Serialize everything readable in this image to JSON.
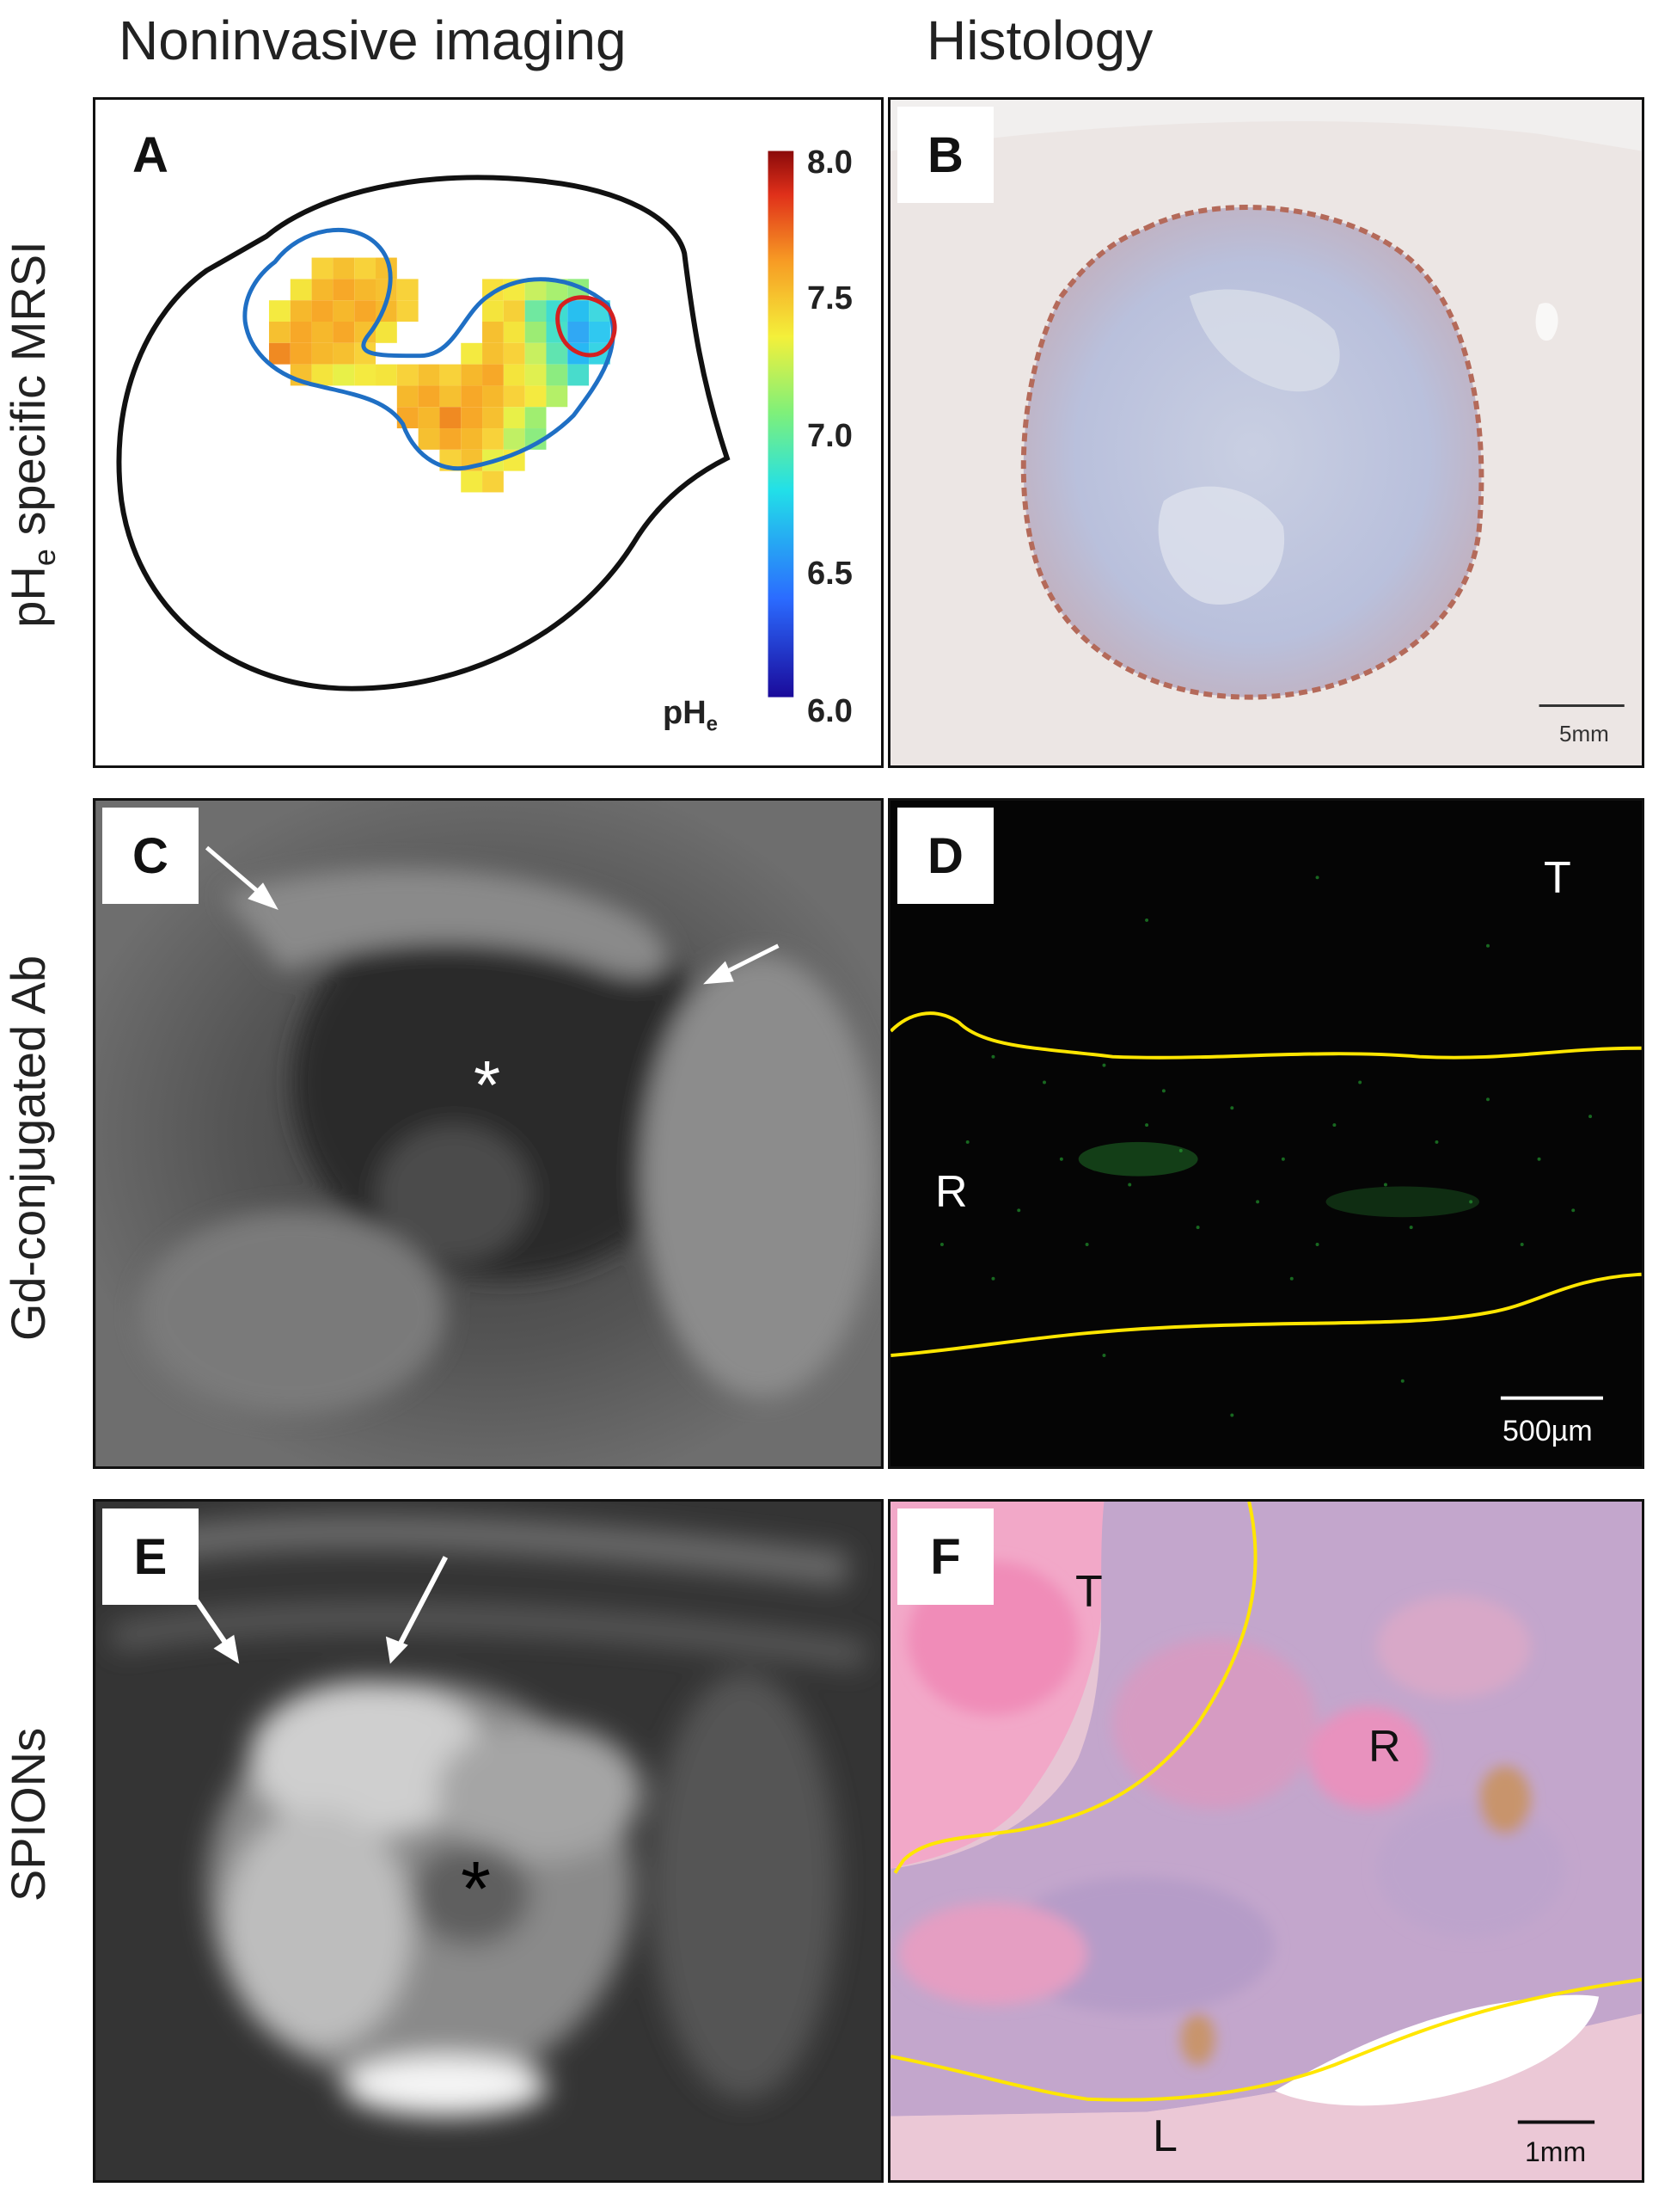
{
  "columns": {
    "left": "Noninvasive imaging",
    "right": "Histology"
  },
  "rows": {
    "ph_main": "pH",
    "ph_sub": "e",
    "ph_rest": " specific MRSI",
    "gd": "Gd-conjugated Ab",
    "spions": "SPIONs"
  },
  "panels": {
    "a": {
      "label": "A",
      "colorbar_ticks": [
        "8.0",
        "7.5",
        "7.0",
        "6.5",
        "6.0"
      ],
      "colorbar_main": "pH",
      "colorbar_sub": "e"
    },
    "b": {
      "label": "B",
      "scale": "5mm"
    },
    "c": {
      "label": "C",
      "asterisk": "*"
    },
    "d": {
      "label": "D",
      "region_t": "T",
      "region_r": "R",
      "scale": "500µm"
    },
    "e": {
      "label": "E",
      "asterisk": "*"
    },
    "f": {
      "label": "F",
      "region_t": "T",
      "region_r": "R",
      "region_l": "L",
      "scale": "1mm"
    }
  },
  "colors": {
    "contour_outer": "#111111",
    "contour_blue": "#1f6fc4",
    "contour_red": "#d42020",
    "boundary_yellow": "#ffe600"
  }
}
